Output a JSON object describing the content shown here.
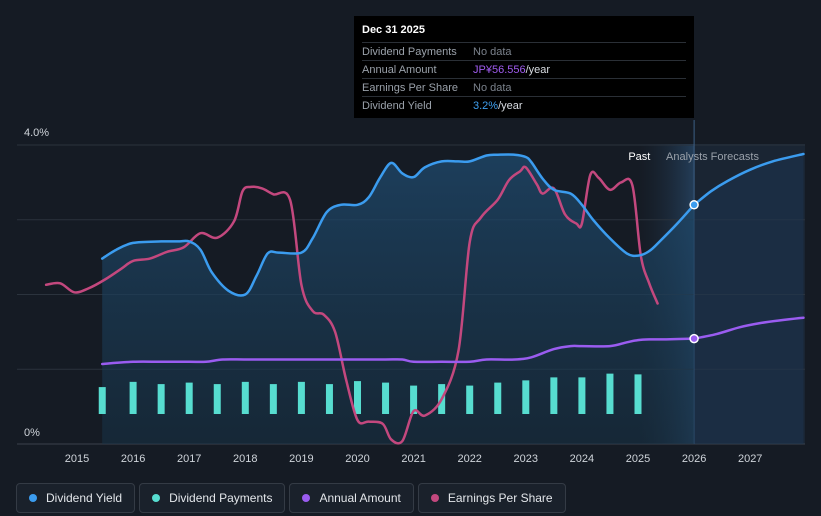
{
  "chart_data": {
    "type": "line",
    "y_axis": {
      "top_label": "4.0%",
      "bottom_label": "0%",
      "ylim": [
        0,
        4.0
      ]
    },
    "x_ticks": [
      "2015",
      "2016",
      "2017",
      "2018",
      "2019",
      "2020",
      "2021",
      "2022",
      "2023",
      "2024",
      "2025",
      "2026",
      "2027"
    ],
    "x_range": [
      2014.4,
      2027.95
    ],
    "forecast_start": 2026.0,
    "past_label": "Past",
    "forecast_label": "Analysts Forecasts",
    "series": [
      {
        "name": "Dividend Yield",
        "color": "#3b9cef",
        "x": [
          2015.45,
          2015.7,
          2016.0,
          2016.5,
          2016.8,
          2017.0,
          2017.2,
          2017.4,
          2017.7,
          2018.0,
          2018.2,
          2018.4,
          2018.6,
          2019.0,
          2019.2,
          2019.45,
          2019.7,
          2020.0,
          2020.2,
          2020.4,
          2020.6,
          2020.8,
          2021.0,
          2021.2,
          2021.5,
          2021.8,
          2022.0,
          2022.3,
          2022.5,
          2022.8,
          2023.0,
          2023.1,
          2023.3,
          2023.5,
          2023.8,
          2024.0,
          2024.2,
          2024.5,
          2024.8,
          2025.0,
          2025.2,
          2025.4,
          2025.7,
          2026.0
        ],
        "y": [
          2.48,
          2.6,
          2.69,
          2.71,
          2.71,
          2.71,
          2.6,
          2.3,
          2.05,
          2.0,
          2.25,
          2.55,
          2.56,
          2.56,
          2.75,
          3.1,
          3.2,
          3.2,
          3.3,
          3.56,
          3.76,
          3.62,
          3.57,
          3.7,
          3.78,
          3.78,
          3.78,
          3.86,
          3.87,
          3.87,
          3.84,
          3.77,
          3.55,
          3.4,
          3.35,
          3.2,
          3.0,
          2.75,
          2.55,
          2.52,
          2.58,
          2.72,
          2.95,
          3.2
        ]
      },
      {
        "name": "Dividend Yield Forecast",
        "color": "#3b9cef",
        "x": [
          2026.0,
          2026.3,
          2026.6,
          2027.0,
          2027.4,
          2027.95
        ],
        "y": [
          3.2,
          3.38,
          3.52,
          3.67,
          3.78,
          3.88
        ]
      },
      {
        "name": "Annual Amount",
        "color": "#9a5cf0",
        "x": [
          2015.45,
          2016.0,
          2016.5,
          2017.0,
          2017.3,
          2017.6,
          2018.0,
          2018.5,
          2019.0,
          2019.5,
          2020.0,
          2020.5,
          2020.8,
          2021.0,
          2021.5,
          2022.0,
          2022.3,
          2022.8,
          2023.1,
          2023.5,
          2023.8,
          2024.0,
          2024.5,
          2024.8,
          2025.0,
          2025.2,
          2025.5,
          2026.0
        ],
        "y": [
          1.07,
          1.1,
          1.1,
          1.1,
          1.1,
          1.13,
          1.13,
          1.13,
          1.13,
          1.13,
          1.13,
          1.13,
          1.13,
          1.1,
          1.1,
          1.1,
          1.13,
          1.13,
          1.16,
          1.27,
          1.31,
          1.31,
          1.31,
          1.36,
          1.39,
          1.4,
          1.4,
          1.41
        ]
      },
      {
        "name": "Annual Amount Forecast",
        "color": "#9a5cf0",
        "x": [
          2026.0,
          2026.4,
          2026.8,
          2027.2,
          2027.6,
          2027.95
        ],
        "y": [
          1.41,
          1.47,
          1.56,
          1.62,
          1.66,
          1.69
        ]
      },
      {
        "name": "Earnings Per Share",
        "color": "#c3487e",
        "x": [
          2014.45,
          2014.7,
          2014.95,
          2015.2,
          2015.5,
          2015.8,
          2016.0,
          2016.3,
          2016.6,
          2016.9,
          2017.2,
          2017.5,
          2017.8,
          2017.95,
          2018.1,
          2018.3,
          2018.5,
          2018.8,
          2019.0,
          2019.2,
          2019.4,
          2019.6,
          2019.8,
          2020.0,
          2020.2,
          2020.45,
          2020.6,
          2020.8,
          2021.0,
          2021.2,
          2021.5,
          2021.8,
          2022.0,
          2022.2,
          2022.5,
          2022.7,
          2022.9,
          2023.0,
          2023.2,
          2023.3,
          2023.5,
          2023.7,
          2023.9,
          2024.0,
          2024.15,
          2024.3,
          2024.5,
          2024.7,
          2024.9,
          2025.05,
          2025.2,
          2025.35
        ],
        "y": [
          2.13,
          2.15,
          2.03,
          2.08,
          2.2,
          2.35,
          2.45,
          2.48,
          2.57,
          2.63,
          2.82,
          2.76,
          2.98,
          3.38,
          3.44,
          3.42,
          3.34,
          3.26,
          2.13,
          1.78,
          1.73,
          1.5,
          0.85,
          0.32,
          0.3,
          0.27,
          0.06,
          0.04,
          0.44,
          0.38,
          0.6,
          1.25,
          2.7,
          3.03,
          3.27,
          3.53,
          3.65,
          3.7,
          3.47,
          3.35,
          3.42,
          3.07,
          2.95,
          2.95,
          3.6,
          3.56,
          3.4,
          3.5,
          3.46,
          2.52,
          2.15,
          1.88
        ]
      }
    ],
    "dividend_payments": {
      "name": "Dividend Payments",
      "color": "#57ddd0",
      "x": [
        2015.45,
        2016.0,
        2016.5,
        2017.0,
        2017.5,
        2018.0,
        2018.5,
        2019.0,
        2019.5,
        2020.0,
        2020.5,
        2021.0,
        2021.5,
        2022.0,
        2022.5,
        2023.0,
        2023.5,
        2024.0,
        2024.5,
        2025.0
      ],
      "heights": [
        0.36,
        0.43,
        0.4,
        0.42,
        0.4,
        0.43,
        0.4,
        0.43,
        0.4,
        0.44,
        0.42,
        0.38,
        0.4,
        0.38,
        0.42,
        0.45,
        0.49,
        0.49,
        0.54,
        0.53
      ]
    },
    "highlight_points": [
      {
        "series": "Dividend Yield",
        "x": 2026.0,
        "y": 3.2,
        "color": "#3b9cef"
      },
      {
        "series": "Annual Amount",
        "x": 2026.0,
        "y": 1.41,
        "color": "#9a5cf0"
      }
    ]
  },
  "tooltip": {
    "date": "Dec 31 2025",
    "rows": [
      {
        "label": "Dividend Payments",
        "value": "No data",
        "unit": ""
      },
      {
        "label": "Annual Amount",
        "value": "JP¥56.556",
        "unit": "/year"
      },
      {
        "label": "Earnings Per Share",
        "value": "No data",
        "unit": ""
      },
      {
        "label": "Dividend Yield",
        "value": "3.2%",
        "unit": "/year"
      }
    ]
  },
  "legend": [
    {
      "label": "Dividend Yield",
      "color": "#3b9cef"
    },
    {
      "label": "Dividend Payments",
      "color": "#57ddd0"
    },
    {
      "label": "Annual Amount",
      "color": "#9a5cf0"
    },
    {
      "label": "Earnings Per Share",
      "color": "#c3487e"
    }
  ]
}
